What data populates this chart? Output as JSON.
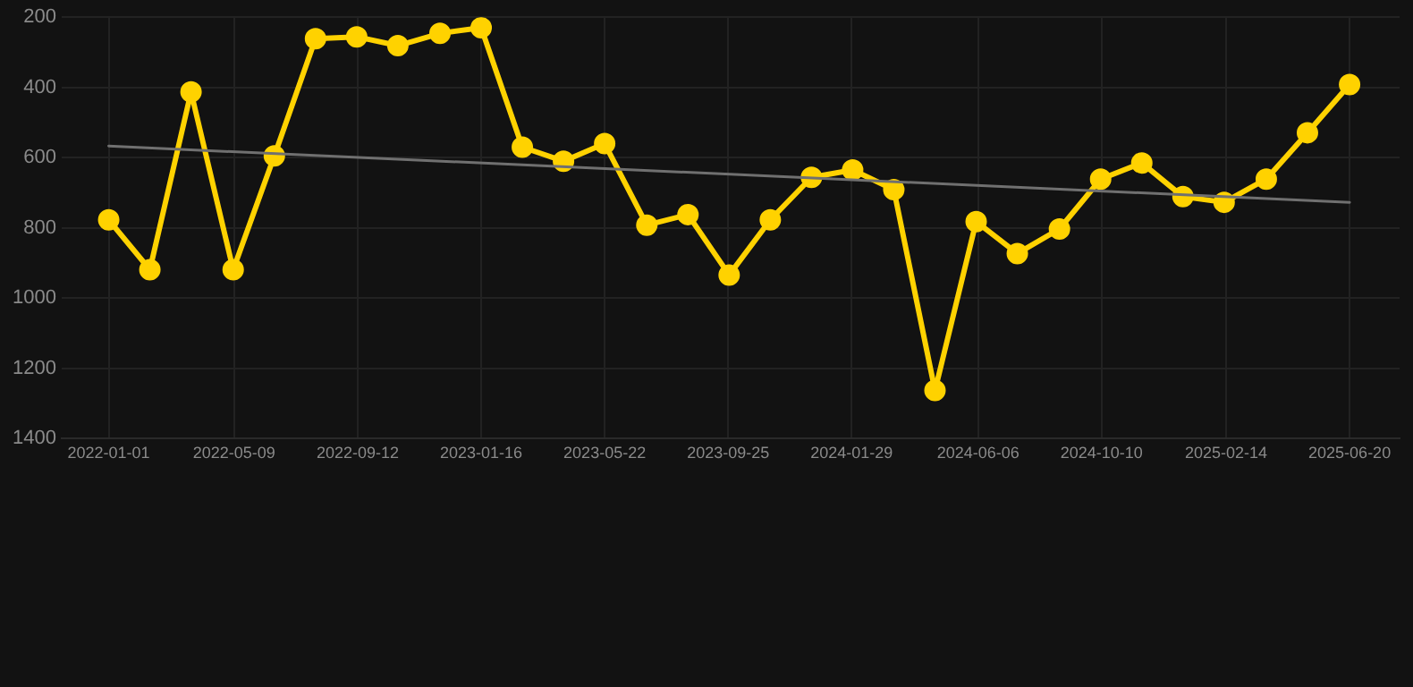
{
  "chart_data": {
    "type": "line",
    "x": [
      "2022-01-01",
      "2022-02-12",
      "2022-03-26",
      "2022-05-08",
      "2022-06-19",
      "2022-07-31",
      "2022-09-11",
      "2022-10-23",
      "2022-12-05",
      "2023-01-16",
      "2023-02-27",
      "2023-04-10",
      "2023-05-22",
      "2023-07-04",
      "2023-08-15",
      "2023-09-26",
      "2023-11-07",
      "2023-12-19",
      "2024-01-30",
      "2024-03-12",
      "2024-04-23",
      "2024-06-04",
      "2024-07-16",
      "2024-08-28",
      "2024-10-09",
      "2024-11-20",
      "2025-01-01",
      "2025-02-12",
      "2025-03-27",
      "2025-05-08",
      "2025-06-20"
    ],
    "series": [
      {
        "color": "#ffd200",
        "marker": "circle",
        "values": [
          777,
          919,
          413,
          919,
          595,
          261,
          256,
          281,
          246,
          230,
          570,
          610,
          560,
          792,
          762,
          934,
          777,
          656,
          635,
          691,
          1263,
          782,
          873,
          803,
          661,
          615,
          711,
          727,
          661,
          529,
          392
        ]
      },
      {
        "type": "line",
        "color": "#707070",
        "marker": "none",
        "x": [
          "2022-01-01",
          "2025-06-20"
        ],
        "values": [
          567,
          727
        ]
      }
    ],
    "xlim": [
      "2021-11-14",
      "2025-08-10"
    ],
    "xticks": [
      "2022-01-01",
      "2022-05-09",
      "2022-09-12",
      "2023-01-16",
      "2023-05-22",
      "2023-09-25",
      "2024-01-29",
      "2024-06-06",
      "2024-10-10",
      "2025-02-14",
      "2025-06-20"
    ],
    "ylim": [
      1400,
      200
    ],
    "yticks": [
      200,
      400,
      600,
      800,
      1000,
      1200,
      1400
    ],
    "grid": true,
    "legend": false,
    "line_style": "solid"
  }
}
